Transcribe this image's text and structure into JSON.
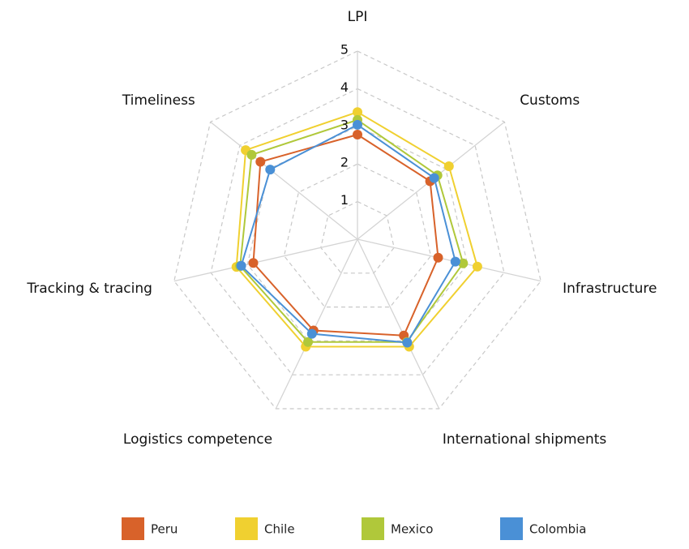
{
  "chart_data": {
    "type": "radar",
    "axes": [
      "LPI",
      "Customs",
      "Infrastructure",
      "International shipments",
      "Logistics competence",
      "Tracking & tracing",
      "Timeliness"
    ],
    "rlim": [
      0,
      5
    ],
    "ticks": [
      1,
      2,
      3,
      4,
      5
    ],
    "grid": true,
    "legend_position": "bottom",
    "series": [
      {
        "name": "Peru",
        "color": "#d8622a",
        "values": [
          2.78,
          2.47,
          2.2,
          2.84,
          2.69,
          2.84,
          3.3
        ]
      },
      {
        "name": "Chile",
        "color": "#f0d030",
        "values": [
          3.38,
          3.11,
          3.27,
          3.17,
          3.17,
          3.3,
          3.8
        ]
      },
      {
        "name": "Mexico",
        "color": "#b0c83a",
        "values": [
          3.17,
          2.72,
          2.88,
          3.03,
          3.03,
          3.2,
          3.6
        ]
      },
      {
        "name": "Colombia",
        "color": "#4a90d6",
        "values": [
          3.04,
          2.61,
          2.67,
          3.05,
          2.79,
          3.17,
          2.97
        ]
      }
    ]
  }
}
